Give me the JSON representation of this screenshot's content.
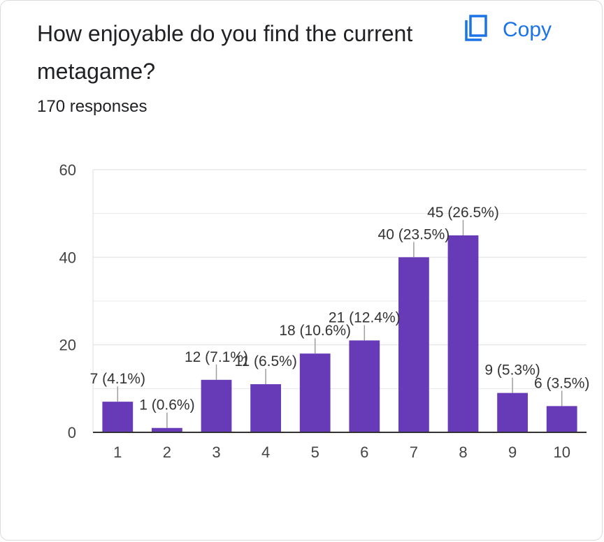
{
  "question": {
    "title": "How enjoyable do you find the current metagame?",
    "responses": "170 responses"
  },
  "copy_button": {
    "label": "Copy",
    "icon": "copy-icon"
  },
  "colors": {
    "bar": "#673ab7",
    "accent": "#1a73e8",
    "grid": "#e8e8e8",
    "axis": "#333333",
    "text": "#202124"
  },
  "chart_data": {
    "type": "bar",
    "categories": [
      "1",
      "2",
      "3",
      "4",
      "5",
      "6",
      "7",
      "8",
      "9",
      "10"
    ],
    "values": [
      7,
      1,
      12,
      11,
      18,
      21,
      40,
      45,
      9,
      6
    ],
    "data_labels": [
      "7 (4.1%)",
      "1 (0.6%)",
      "12 (7.1%)",
      "11 (6.5%)",
      "18 (10.6%)",
      "21 (12.4%)",
      "40 (23.5%)",
      "45 (26.5%)",
      "9 (5.3%)",
      "6 (3.5%)"
    ],
    "y_ticks": [
      0,
      20,
      40,
      60
    ],
    "ylim": [
      0,
      60
    ],
    "grid": true
  }
}
